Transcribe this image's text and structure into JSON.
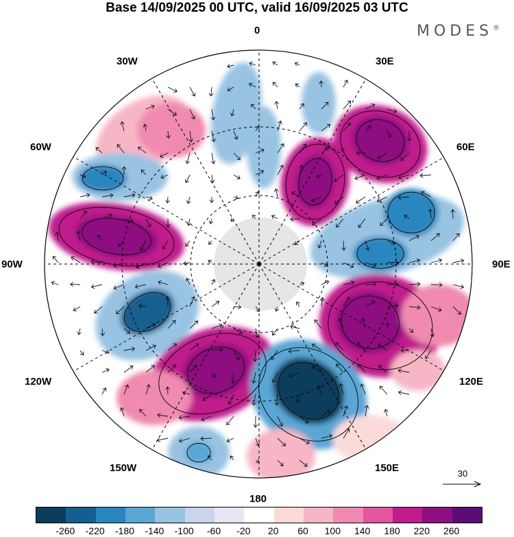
{
  "header": {
    "title": "Base 14/09/2025 00 UTC, valid 16/09/2025 03 UTC",
    "logo_text": "MODES",
    "logo_mark": "®"
  },
  "map": {
    "projection": "south-polar-stereographic",
    "longitude_labels": {
      "lon_0": "0",
      "lon_30e": "30E",
      "lon_60e": "60E",
      "lon_90e": "90E",
      "lon_120e": "120E",
      "lon_150e": "150E",
      "lon_180": "180",
      "lon_150w": "150W",
      "lon_120w": "120W",
      "lon_90w": "90W",
      "lon_60w": "60W",
      "lon_30w": "30W"
    },
    "field": "geopotential height anomaly with wind vectors",
    "colors": {
      "land_fill": "#e8e8e8",
      "grid_line": "#000000"
    }
  },
  "vector_reference": {
    "label": "30"
  },
  "colorbar": {
    "colors": [
      "#0b3d5c",
      "#145f8f",
      "#2a86bf",
      "#5aa6d4",
      "#98c3e2",
      "#c9d5ec",
      "#e8e6f4",
      "#ffffff",
      "#fbdada",
      "#f7b6c6",
      "#f08ab0",
      "#e3559f",
      "#c01b8c",
      "#8e1080",
      "#5a0d76"
    ],
    "ticks": [
      "-260",
      "-220",
      "-180",
      "-140",
      "-100",
      "-60",
      "-20",
      "20",
      "60",
      "100",
      "140",
      "180",
      "220",
      "260"
    ]
  }
}
